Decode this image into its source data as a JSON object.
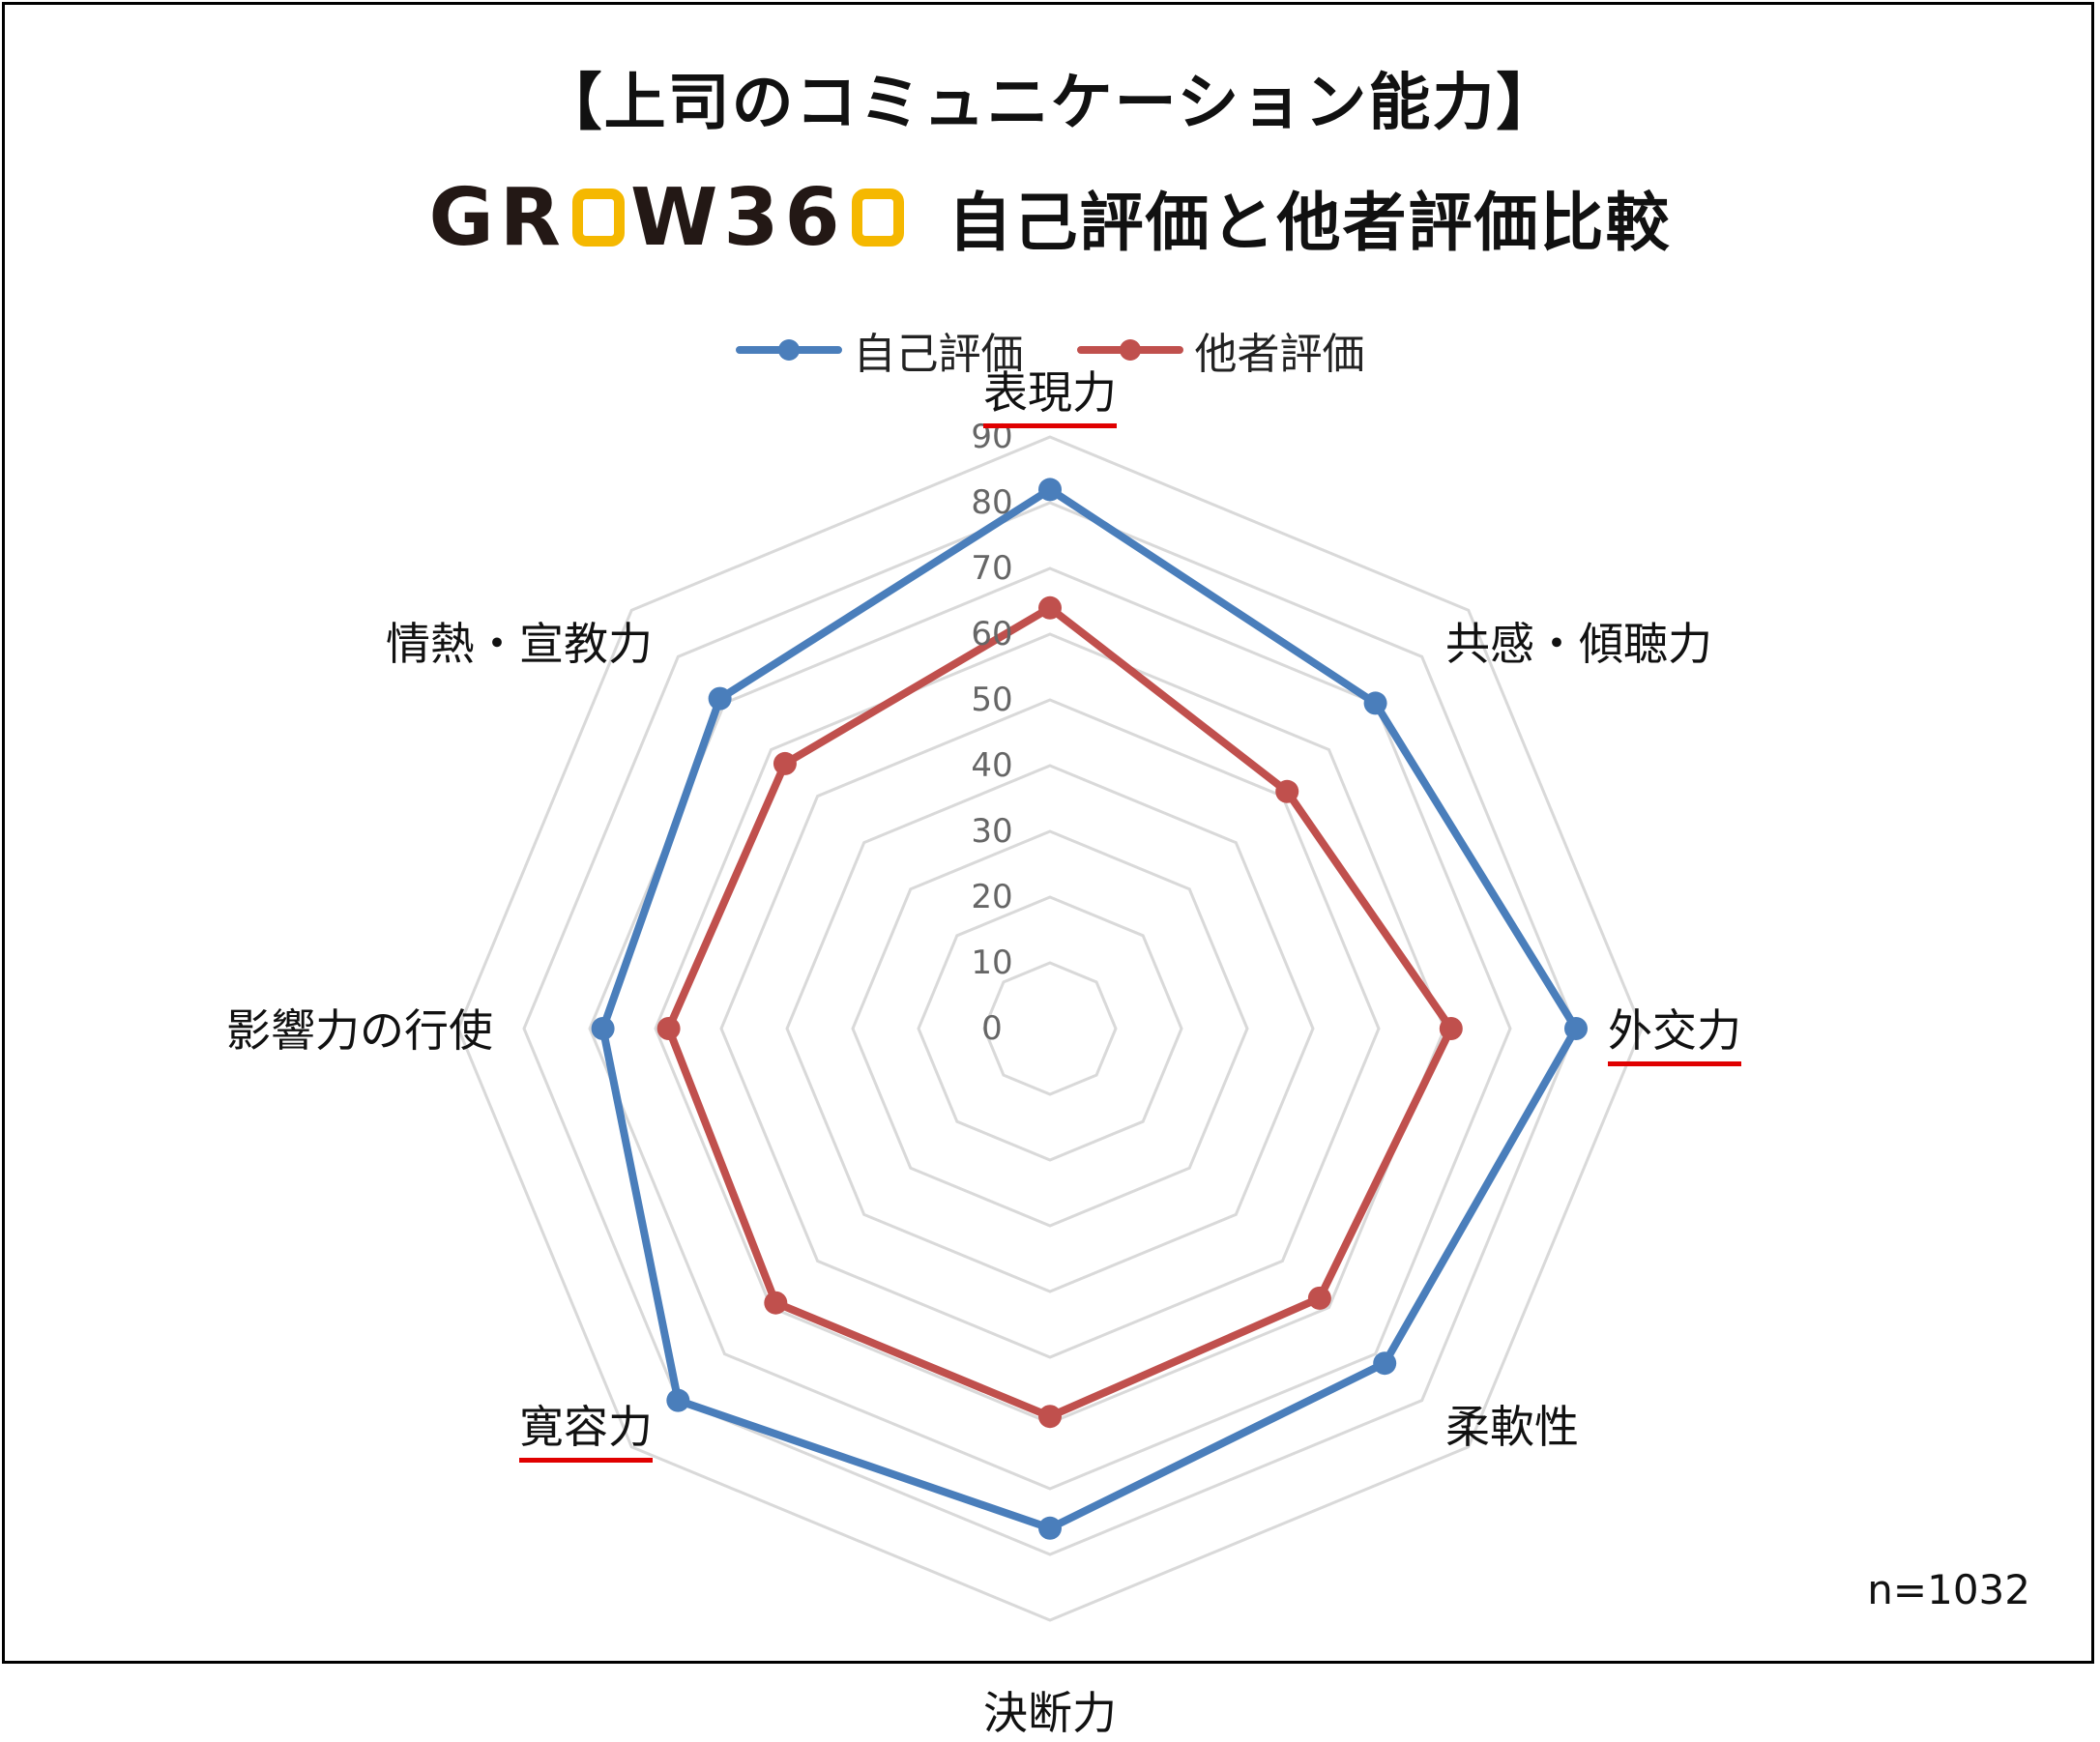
{
  "title_line1": "【上司のコミュニケーション能力】",
  "logo": {
    "part1": "GR",
    "part2": "W36",
    "accent_color": "#f5b800"
  },
  "title_line2": "自己評価と他者評価比較",
  "sample_size": "n=1032",
  "chart_data": {
    "type": "radar",
    "categories": [
      "表現力",
      "共感・傾聴力",
      "外交力",
      "柔軟性",
      "決断力",
      "寛容力",
      "影響力の行使",
      "情熱・宣教力"
    ],
    "underlined_categories": [
      "表現力",
      "外交力",
      "寛容力"
    ],
    "series": [
      {
        "name": "自己評価",
        "color": "#4a7ebb",
        "values": [
          82,
          70,
          80,
          72,
          76,
          80,
          68,
          71
        ]
      },
      {
        "name": "他者評価",
        "color": "#c0504d",
        "values": [
          64,
          51,
          61,
          58,
          59,
          59,
          58,
          57
        ]
      }
    ],
    "r_range": [
      0,
      90
    ],
    "r_ticks": [
      "0",
      "10",
      "20",
      "30",
      "40",
      "50",
      "60",
      "70",
      "80",
      "90"
    ],
    "legend_position": "top",
    "grid": true
  }
}
